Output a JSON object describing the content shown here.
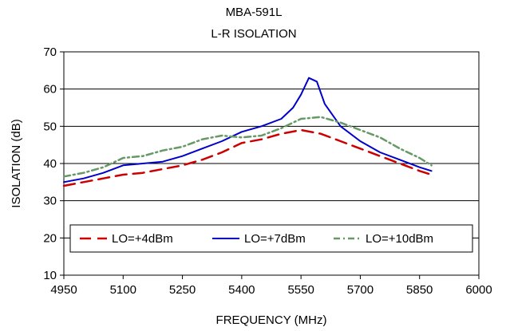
{
  "chart_data": {
    "type": "line",
    "title": "MBA-591L",
    "subtitle": "L-R ISOLATION",
    "xlabel": "FREQUENCY (MHz)",
    "ylabel": "ISOLATION (dB)",
    "xlim": [
      4950,
      6000
    ],
    "ylim": [
      10,
      70
    ],
    "xticks": [
      4950,
      5100,
      5250,
      5400,
      5550,
      5700,
      5850,
      6000
    ],
    "yticks": [
      10,
      20,
      30,
      40,
      50,
      60,
      70
    ],
    "grid": "horizontal",
    "legend": "inside-bottom",
    "series": [
      {
        "name": "LO=+4dBm",
        "color": "#cc0000",
        "style": "dashed",
        "x": [
          4950,
          5000,
          5050,
          5100,
          5150,
          5200,
          5250,
          5300,
          5350,
          5400,
          5450,
          5500,
          5550,
          5600,
          5650,
          5700,
          5750,
          5800,
          5850,
          5880
        ],
        "y": [
          34,
          35,
          36,
          37,
          37.5,
          38.5,
          39.5,
          41,
          43,
          45.5,
          46.5,
          48,
          49,
          48,
          46,
          44,
          42,
          40,
          38,
          37
        ]
      },
      {
        "name": "LO=+7dBm",
        "color": "#0000cc",
        "style": "solid",
        "x": [
          4950,
          5000,
          5050,
          5100,
          5150,
          5200,
          5250,
          5300,
          5350,
          5400,
          5450,
          5500,
          5530,
          5550,
          5570,
          5590,
          5610,
          5650,
          5700,
          5750,
          5800,
          5850,
          5880
        ],
        "y": [
          35,
          36,
          37.5,
          39.5,
          40,
          40.5,
          42,
          44,
          46,
          48.5,
          50,
          52,
          55,
          58.5,
          63,
          62,
          56,
          50,
          46,
          43,
          41,
          39,
          38
        ]
      },
      {
        "name": "LO=+10dBm",
        "color": "#669966",
        "style": "dash-dot",
        "x": [
          4950,
          5000,
          5050,
          5100,
          5150,
          5200,
          5250,
          5300,
          5350,
          5400,
          5450,
          5500,
          5550,
          5600,
          5650,
          5700,
          5750,
          5800,
          5850,
          5880
        ],
        "y": [
          36.5,
          37.5,
          39,
          41.5,
          42,
          43.5,
          44.5,
          46.5,
          47.5,
          47,
          47.5,
          49.5,
          52,
          52.5,
          51,
          49,
          47,
          44,
          41.5,
          39.5
        ]
      }
    ]
  }
}
